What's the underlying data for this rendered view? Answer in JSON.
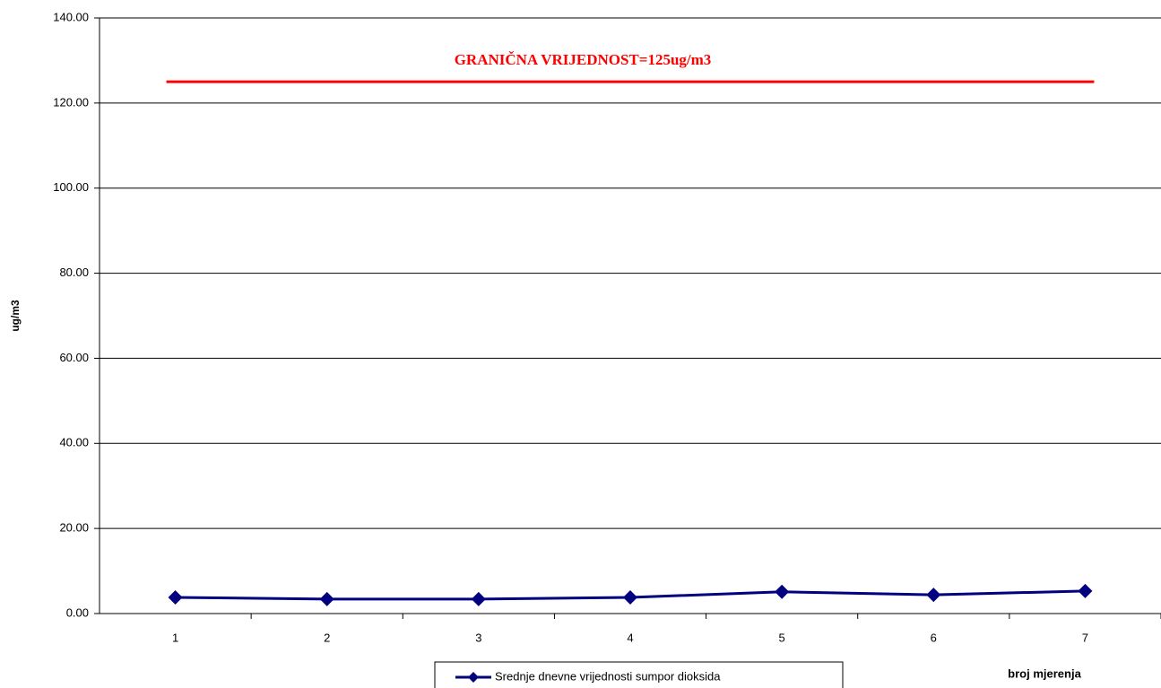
{
  "chart_data": {
    "type": "line",
    "annotation": "GRANIČNA VRIJEDNOST=125ug/m3",
    "y_label": "ug/m3",
    "x_label": "broj mjerenja",
    "categories": [
      "1",
      "2",
      "3",
      "4",
      "5",
      "6",
      "7"
    ],
    "series": [
      {
        "name": "Srednje dnevne vrijednosti sumpor dioksida",
        "color": "#000080",
        "values": [
          3.8,
          3.4,
          3.4,
          3.8,
          5.1,
          4.4,
          5.3
        ]
      }
    ],
    "reference_line": {
      "value": 125,
      "color": "#ff0000"
    },
    "ylim": [
      0,
      140
    ],
    "yticks": [
      {
        "value": 0,
        "label": "0.00"
      },
      {
        "value": 20,
        "label": "20.00"
      },
      {
        "value": 40,
        "label": "40.00"
      },
      {
        "value": 60,
        "label": "60.00"
      },
      {
        "value": 80,
        "label": "80.00"
      },
      {
        "value": 100,
        "label": "100.00"
      },
      {
        "value": 120,
        "label": "120.00"
      },
      {
        "value": 140,
        "label": "140.00"
      }
    ],
    "grid": true
  }
}
